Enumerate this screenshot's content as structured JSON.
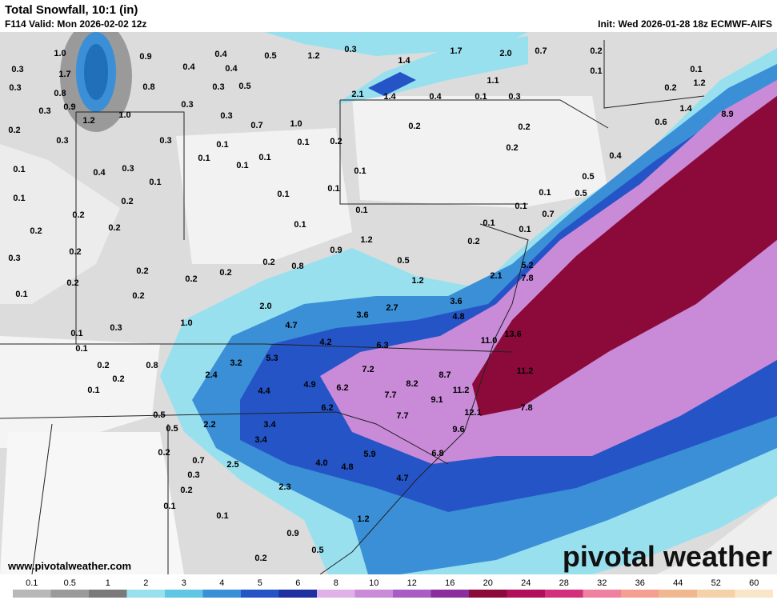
{
  "header": {
    "title": "Total Snowfall, 10:1 (in)",
    "valid": "F114 Valid: Mon 2026-02-02 12z",
    "init": "Init: Wed 2026-01-28 18z ECMWF-AIFS"
  },
  "map": {
    "labels": [
      "1.0",
      "0.9",
      "0.4",
      "0.4",
      "0.4",
      "0.5",
      "1.2",
      "0.3",
      "1.4",
      "1.7",
      "2.0",
      "0.7",
      "0.2",
      "0.1",
      "0.1",
      "0.3",
      "1.7",
      "0.3",
      "0.8",
      "0.8",
      "0.3",
      "0.5",
      "1.1",
      "0.2",
      "1.2",
      "0.3",
      "0.9",
      "0.3",
      "2.1",
      "1.4",
      "0.4",
      "0.1",
      "0.3",
      "1.2",
      "1.0",
      "0.3",
      "0.7",
      "1.0",
      "0.2",
      "0.2",
      "1.4",
      "0.6",
      "8.9",
      "0.2",
      "0.3",
      "0.3",
      "0.1",
      "0.1",
      "0.2",
      "0.2",
      "0.1",
      "0.1",
      "0.1",
      "0.4",
      "0.1",
      "0.4",
      "0.3",
      "0.1",
      "0.1",
      "0.5",
      "0.1",
      "0.2",
      "0.1",
      "0.1",
      "0.1",
      "0.5",
      "0.2",
      "0.1",
      "0.1",
      "0.7",
      "0.2",
      "0.2",
      "0.1",
      "0.1",
      "0.1",
      "0.2",
      "1.2",
      "0.2",
      "0.9",
      "0.3",
      "0.2",
      "0.8",
      "0.5",
      "5.2",
      "0.2",
      "0.2",
      "0.2",
      "0.2",
      "2.1",
      "7.8",
      "1.2",
      "0.1",
      "0.2",
      "2.0",
      "2.7",
      "3.6",
      "0.3",
      "1.0",
      "0.1",
      "4.7",
      "3.6",
      "4.8",
      "13.6",
      "0.1",
      "4.2",
      "6.3",
      "11.0",
      "0.2",
      "0.8",
      "3.2",
      "5.3",
      "7.2",
      "8.7",
      "11.2",
      "0.2",
      "2.4",
      "4.9",
      "6.2",
      "8.2",
      "0.1",
      "4.4",
      "7.7",
      "9.1",
      "11.2",
      "7.8",
      "0.5",
      "6.2",
      "12.1",
      "2.2",
      "3.4",
      "7.7",
      "0.5",
      "3.4",
      "9.6",
      "0.2",
      "5.9",
      "6.8",
      "0.7",
      "2.5",
      "4.0",
      "4.8",
      "0.3",
      "4.7",
      "0.2",
      "2.3",
      "0.1",
      "0.1",
      "1.2",
      "0.9",
      "0.5",
      "0.2"
    ]
  },
  "footer": {
    "url": "www.pivotalweather.com",
    "brand": "pivotal weather"
  },
  "colorbar": {
    "ticks": [
      0.1,
      0.5,
      1,
      2,
      3,
      4,
      5,
      6,
      8,
      10,
      12,
      16,
      20,
      24,
      28,
      32,
      36,
      44,
      52,
      60
    ],
    "colors": [
      "#b8b8b8",
      "#9a9a9a",
      "#7a7a7a",
      "#99e0ef",
      "#5fc6e3",
      "#3a8fd6",
      "#2554c7",
      "#1e2fa0",
      "#e0b0e8",
      "#c98ad8",
      "#a95cc4",
      "#8a2e9e",
      "#8b0a3a",
      "#b0105a",
      "#d0307c",
      "#f080a0",
      "#f4a090",
      "#f0b890",
      "#f5d0a8",
      "#f7e6c8"
    ]
  }
}
